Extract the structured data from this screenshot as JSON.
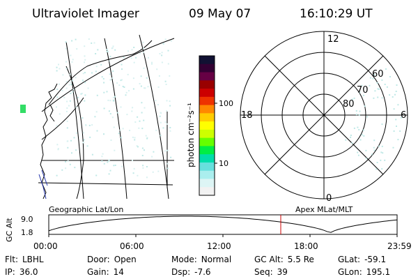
{
  "header": {
    "instrument": "Ultraviolet Imager",
    "date": "09 May 07",
    "time": "16:10:29 UT"
  },
  "colorbar": {
    "label": "photon cm⁻²s⁻¹",
    "ticks": [
      "100",
      "10"
    ],
    "colors": [
      "#111133",
      "#330033",
      "#660044",
      "#990000",
      "#cc0000",
      "#ee3300",
      "#ff8800",
      "#ffcc00",
      "#ffff00",
      "#ccff00",
      "#66ff00",
      "#00ee44",
      "#00ddaa",
      "#66e0dd",
      "#aaeeee",
      "#ddf5f5",
      "#f2f2f2"
    ]
  },
  "polar": {
    "mlt_labels": [
      "12",
      "18",
      "6",
      "0"
    ],
    "lat_labels": [
      "60",
      "70",
      "80"
    ]
  },
  "timeline": {
    "left_label": "Geographic Lat/Lon",
    "right_label": "Apex MLat/MLT",
    "y_axis_label": "GC Alt",
    "y_ticks": [
      "9.0",
      "1.8"
    ],
    "x_ticks": [
      "00:00",
      "06:00",
      "12:00",
      "18:00",
      "23:59"
    ],
    "marker_color": "#cc0000",
    "curve_color": "#000000"
  },
  "status": [
    {
      "label": "Flt:",
      "value": "LBHL"
    },
    {
      "label": "Door:",
      "value": "Open"
    },
    {
      "label": "Mode:",
      "value": "Normal"
    },
    {
      "label": "GC Alt:",
      "value": "5.5 Re"
    },
    {
      "label": "GLat:",
      "value": "-59.1"
    },
    {
      "label": "IP:",
      "value": "36.0"
    },
    {
      "label": "Gain:",
      "value": "14"
    },
    {
      "label": "Dsp:",
      "value": "-7.6"
    },
    {
      "label": "Seq:",
      "value": "39"
    },
    {
      "label": "GLon:",
      "value": "195.1"
    }
  ]
}
